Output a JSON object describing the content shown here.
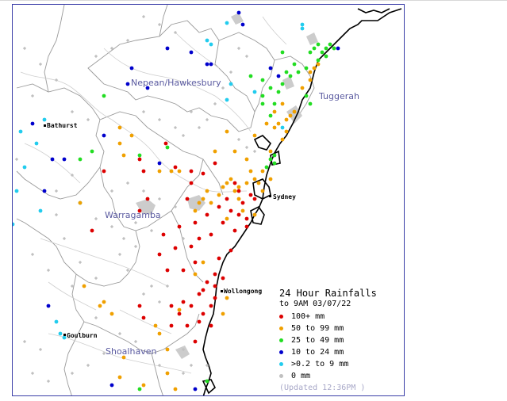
{
  "regions": {
    "nepean": "Nepean/Hawkesbury",
    "tuggerah": "Tuggerah",
    "warragamba": "Warragamba",
    "shoalhaven": "Shoalhaven"
  },
  "towns": {
    "bathurst": "Bathurst",
    "sydney": "Sydney",
    "wollongong": "Wollongong",
    "goulburn": "Goulburn"
  },
  "legend": {
    "title": "24 Hour Rainfalls",
    "subtitle": "to 9AM 03/07/22",
    "items": [
      {
        "label": "100+ mm",
        "color": "#dd0000",
        "key": "r100"
      },
      {
        "label": "50  to 99 mm",
        "color": "#f0a000",
        "key": "r50"
      },
      {
        "label": "25  to 49 mm",
        "color": "#22dd22",
        "key": "r25"
      },
      {
        "label": "10  to 24 mm",
        "color": "#0000cc",
        "key": "r10"
      },
      {
        "label": ">0.2 to 9 mm",
        "color": "#22ccee",
        "key": "r0"
      },
      {
        "label": "0 mm",
        "color": "#c0c0c0",
        "key": "r00"
      }
    ],
    "updated": "(Updated 12:36PM  )"
  },
  "colors": {
    "frame": "#3b3ea8",
    "coast": "#000000",
    "catchment": "#9a9a9a",
    "river": "#c8c8c8",
    "lake": "#cccccc"
  },
  "stations": {
    "r100": [
      [
        208,
        180
      ],
      [
        175,
        200
      ],
      [
        180,
        215
      ],
      [
        220,
        210
      ],
      [
        240,
        215
      ],
      [
        255,
        218
      ],
      [
        185,
        250
      ],
      [
        175,
        265
      ],
      [
        270,
        205
      ],
      [
        205,
        295
      ],
      [
        225,
        285
      ],
      [
        245,
        280
      ],
      [
        260,
        270
      ],
      [
        275,
        260
      ],
      [
        285,
        250
      ],
      [
        300,
        240
      ],
      [
        290,
        265
      ],
      [
        305,
        255
      ],
      [
        315,
        245
      ],
      [
        280,
        280
      ],
      [
        295,
        290
      ],
      [
        310,
        285
      ],
      [
        265,
        295
      ],
      [
        250,
        300
      ],
      [
        240,
        310
      ],
      [
        200,
        320
      ],
      [
        220,
        312
      ],
      [
        275,
        325
      ],
      [
        290,
        315
      ],
      [
        270,
        345
      ],
      [
        260,
        355
      ],
      [
        255,
        365
      ],
      [
        270,
        375
      ],
      [
        265,
        385
      ],
      [
        250,
        370
      ],
      [
        240,
        385
      ],
      [
        230,
        380
      ],
      [
        225,
        395
      ],
      [
        215,
        410
      ],
      [
        235,
        410
      ],
      [
        250,
        405
      ],
      [
        265,
        410
      ],
      [
        270,
        360
      ],
      [
        280,
        350
      ],
      [
        245,
        330
      ],
      [
        210,
        340
      ],
      [
        230,
        340
      ],
      [
        175,
        385
      ],
      [
        180,
        400
      ],
      [
        255,
        395
      ],
      [
        215,
        385
      ],
      [
        245,
        430
      ],
      [
        130,
        215
      ],
      [
        115,
        290
      ],
      [
        240,
        230
      ],
      [
        235,
        250
      ],
      [
        310,
        275
      ],
      [
        295,
        230
      ],
      [
        300,
        270
      ],
      [
        320,
        250
      ]
    ],
    "r50": [
      [
        150,
        160
      ],
      [
        165,
        170
      ],
      [
        150,
        180
      ],
      [
        155,
        195
      ],
      [
        200,
        215
      ],
      [
        215,
        215
      ],
      [
        225,
        215
      ],
      [
        270,
        190
      ],
      [
        285,
        165
      ],
      [
        295,
        190
      ],
      [
        320,
        170
      ],
      [
        335,
        155
      ],
      [
        345,
        140
      ],
      [
        355,
        130
      ],
      [
        345,
        160
      ],
      [
        360,
        165
      ],
      [
        355,
        175
      ],
      [
        350,
        155
      ],
      [
        340,
        190
      ],
      [
        360,
        150
      ],
      [
        365,
        145
      ],
      [
        370,
        140
      ],
      [
        380,
        110
      ],
      [
        390,
        100
      ],
      [
        395,
        85
      ],
      [
        400,
        80
      ],
      [
        390,
        90
      ],
      [
        330,
        215
      ],
      [
        320,
        225
      ],
      [
        310,
        230
      ],
      [
        300,
        235
      ],
      [
        295,
        240
      ],
      [
        285,
        230
      ],
      [
        280,
        235
      ],
      [
        275,
        245
      ],
      [
        260,
        240
      ],
      [
        250,
        255
      ],
      [
        245,
        265
      ],
      [
        255,
        250
      ],
      [
        265,
        255
      ],
      [
        325,
        230
      ],
      [
        330,
        240
      ],
      [
        315,
        215
      ],
      [
        310,
        200
      ],
      [
        340,
        225
      ],
      [
        305,
        265
      ],
      [
        290,
        225
      ],
      [
        285,
        275
      ],
      [
        300,
        250
      ],
      [
        320,
        270
      ],
      [
        255,
        330
      ],
      [
        245,
        345
      ],
      [
        225,
        390
      ],
      [
        195,
        410
      ],
      [
        200,
        420
      ],
      [
        210,
        440
      ],
      [
        155,
        450
      ],
      [
        150,
        475
      ],
      [
        180,
        485
      ],
      [
        125,
        385
      ],
      [
        130,
        380
      ],
      [
        140,
        395
      ],
      [
        105,
        360
      ],
      [
        100,
        255
      ],
      [
        210,
        470
      ],
      [
        220,
        490
      ],
      [
        280,
        395
      ],
      [
        285,
        375
      ]
    ],
    "r25": [
      [
        130,
        120
      ],
      [
        115,
        190
      ],
      [
        100,
        200
      ],
      [
        175,
        195
      ],
      [
        210,
        185
      ],
      [
        315,
        95
      ],
      [
        330,
        100
      ],
      [
        340,
        110
      ],
      [
        350,
        115
      ],
      [
        355,
        65
      ],
      [
        330,
        120
      ],
      [
        345,
        130
      ],
      [
        365,
        95
      ],
      [
        375,
        90
      ],
      [
        385,
        85
      ],
      [
        390,
        65
      ],
      [
        395,
        60
      ],
      [
        400,
        55
      ],
      [
        405,
        65
      ],
      [
        410,
        60
      ],
      [
        415,
        55
      ],
      [
        420,
        60
      ],
      [
        410,
        70
      ],
      [
        400,
        75
      ],
      [
        385,
        120
      ],
      [
        390,
        130
      ],
      [
        345,
        195
      ],
      [
        330,
        130
      ],
      [
        340,
        145
      ],
      [
        355,
        105
      ],
      [
        360,
        90
      ],
      [
        370,
        80
      ],
      [
        340,
        200
      ],
      [
        335,
        210
      ],
      [
        345,
        205
      ],
      [
        175,
        490
      ],
      [
        260,
        480
      ]
    ],
    "r10": [
      [
        165,
        85
      ],
      [
        160,
        105
      ],
      [
        185,
        110
      ],
      [
        240,
        65
      ],
      [
        265,
        80
      ],
      [
        55,
        240
      ],
      [
        65,
        200
      ],
      [
        80,
        200
      ],
      [
        130,
        170
      ],
      [
        200,
        205
      ],
      [
        260,
        80
      ],
      [
        340,
        85
      ],
      [
        350,
        95
      ],
      [
        300,
        15
      ],
      [
        305,
        30
      ],
      [
        425,
        60
      ],
      [
        140,
        485
      ],
      [
        245,
        490
      ],
      [
        210,
        60
      ],
      [
        60,
        385
      ],
      [
        40,
        155
      ]
    ],
    "r0": [
      [
        260,
        50
      ],
      [
        265,
        55
      ],
      [
        285,
        28
      ],
      [
        290,
        105
      ],
      [
        285,
        125
      ],
      [
        25,
        165
      ],
      [
        45,
        180
      ],
      [
        20,
        240
      ],
      [
        75,
        420
      ],
      [
        80,
        425
      ],
      [
        70,
        405
      ],
      [
        30,
        210
      ],
      [
        15,
        282
      ],
      [
        55,
        150
      ],
      [
        100,
        255
      ],
      [
        50,
        265
      ],
      [
        320,
        115
      ],
      [
        380,
        35
      ],
      [
        355,
        160
      ],
      [
        380,
        30
      ]
    ],
    "r00": [
      [
        310,
        185
      ],
      [
        300,
        175
      ],
      [
        320,
        190
      ],
      [
        180,
        140
      ],
      [
        200,
        150
      ],
      [
        240,
        140
      ],
      [
        260,
        150
      ],
      [
        120,
        275
      ],
      [
        140,
        285
      ],
      [
        155,
        300
      ],
      [
        170,
        310
      ],
      [
        70,
        270
      ],
      [
        80,
        300
      ],
      [
        40,
        320
      ],
      [
        60,
        340
      ],
      [
        90,
        360
      ],
      [
        120,
        350
      ],
      [
        100,
        330
      ],
      [
        190,
        360
      ],
      [
        160,
        340
      ],
      [
        150,
        420
      ],
      [
        130,
        445
      ],
      [
        110,
        460
      ],
      [
        90,
        470
      ],
      [
        60,
        480
      ],
      [
        40,
        470
      ],
      [
        50,
        440
      ],
      [
        30,
        430
      ],
      [
        120,
        400
      ],
      [
        170,
        430
      ],
      [
        200,
        460
      ],
      [
        230,
        470
      ],
      [
        180,
        20
      ],
      [
        200,
        30
      ],
      [
        220,
        40
      ],
      [
        160,
        50
      ],
      [
        140,
        60
      ],
      [
        120,
        70
      ],
      [
        300,
        60
      ],
      [
        310,
        70
      ],
      [
        290,
        90
      ],
      [
        280,
        110
      ],
      [
        270,
        130
      ],
      [
        250,
        160
      ],
      [
        230,
        170
      ],
      [
        220,
        160
      ],
      [
        30,
        60
      ],
      [
        50,
        80
      ],
      [
        70,
        100
      ],
      [
        40,
        120
      ],
      [
        90,
        140
      ],
      [
        110,
        150
      ],
      [
        20,
        200
      ],
      [
        90,
        220
      ],
      [
        70,
        240
      ],
      [
        140,
        240
      ],
      [
        160,
        230
      ],
      [
        180,
        240
      ],
      [
        200,
        250
      ],
      [
        220,
        260
      ],
      [
        230,
        300
      ],
      [
        190,
        290
      ],
      [
        170,
        280
      ],
      [
        150,
        320
      ],
      [
        200,
        380
      ],
      [
        180,
        370
      ],
      [
        210,
        360
      ],
      [
        240,
        460
      ],
      [
        260,
        460
      ],
      [
        230,
        440
      ]
    ]
  }
}
